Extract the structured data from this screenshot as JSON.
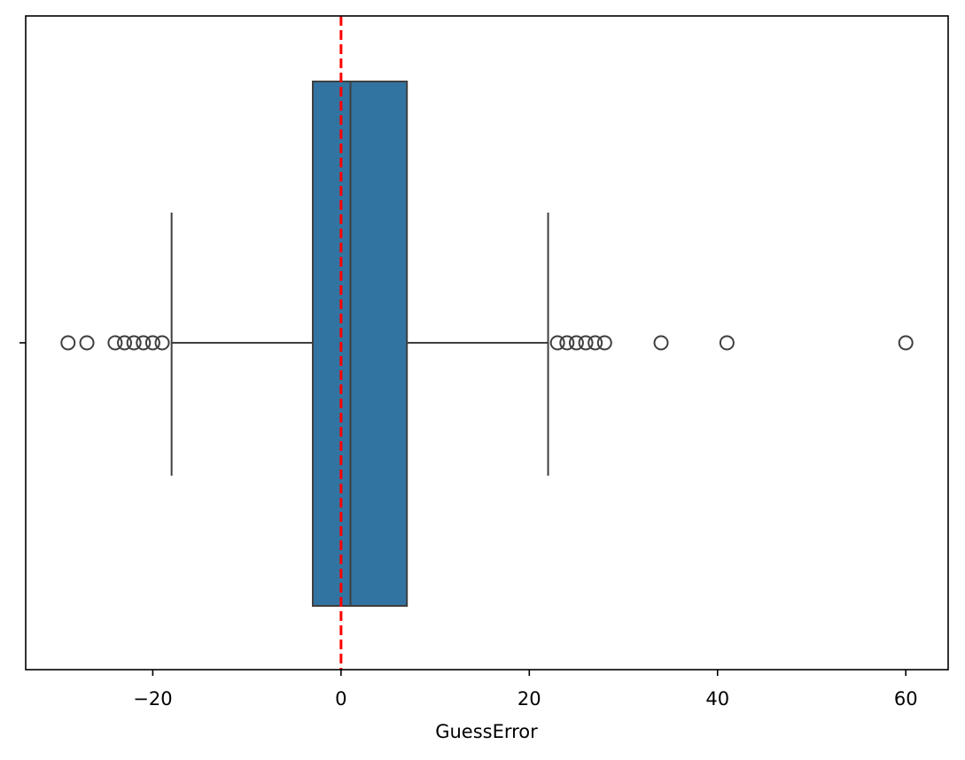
{
  "chart_data": {
    "type": "box",
    "orientation": "horizontal",
    "title": "",
    "xlabel": "GuessError",
    "ylabel": "",
    "xlim": [
      -33.5,
      64.5
    ],
    "xticks": [
      -20,
      0,
      20,
      40,
      60
    ],
    "xtick_labels": [
      "−20",
      "0",
      "20",
      "40",
      "60"
    ],
    "grid": false,
    "box": {
      "q1": -3,
      "median": 1,
      "q3": 7,
      "whisker_low": -18,
      "whisker_high": 22,
      "color": "#3274a1",
      "edge_color": "#3f3f3f"
    },
    "outliers": [
      -29,
      -27,
      -24,
      -23,
      -22,
      -21,
      -20,
      -19,
      23,
      24,
      25,
      26,
      27,
      28,
      34,
      41,
      60
    ],
    "reference_line": {
      "x": 0,
      "color": "#ff0000",
      "style": "dashed"
    }
  }
}
